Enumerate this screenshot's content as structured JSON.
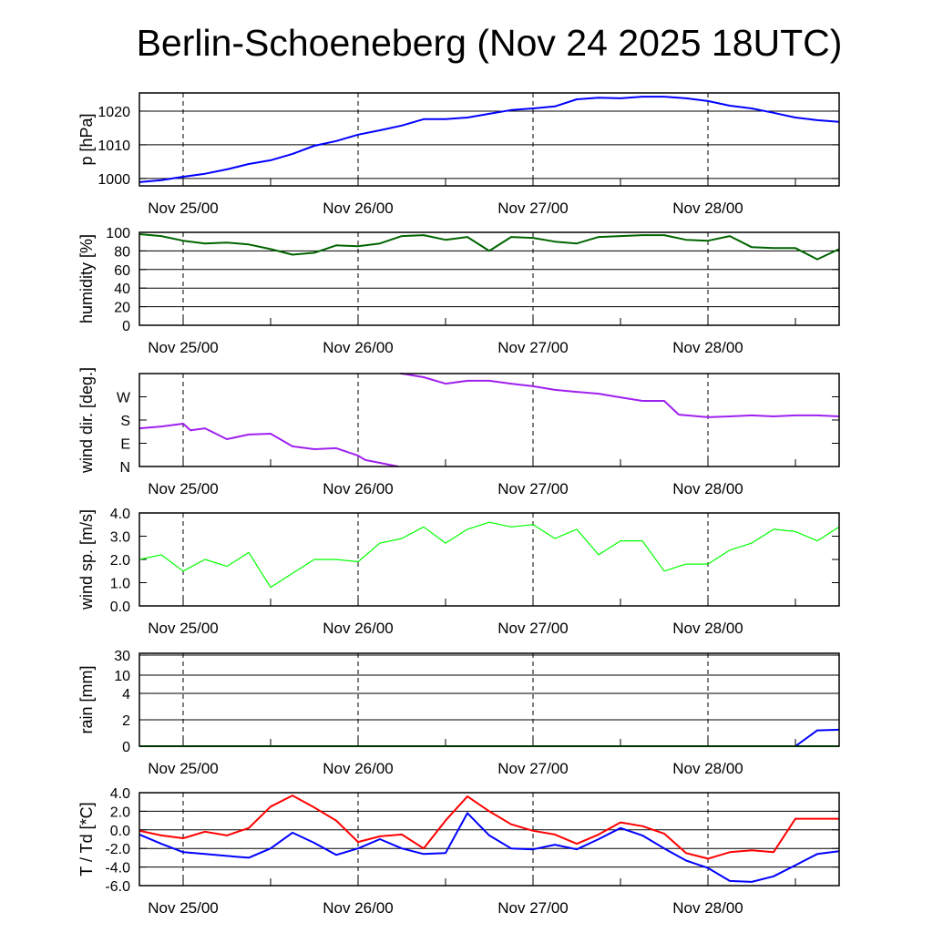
{
  "title": "Berlin-Schoeneberg (Nov 24 2025 18UTC)",
  "chart_data": {
    "type": "line",
    "x_unit": "hours since Nov 24 18UTC",
    "x": [
      0,
      3,
      6,
      9,
      12,
      15,
      18,
      21,
      24,
      27,
      30,
      33,
      36,
      39,
      42,
      45,
      48,
      51,
      54,
      57,
      60,
      63,
      66,
      69,
      72,
      75,
      78,
      81,
      84,
      87,
      90,
      93,
      96
    ],
    "xlim": [
      0,
      96
    ],
    "x_major_ticks": [
      {
        "h": 6,
        "label": "Nov 25/00"
      },
      {
        "h": 30,
        "label": "Nov 26/00"
      },
      {
        "h": 54,
        "label": "Nov 27/00"
      },
      {
        "h": 78,
        "label": "Nov 28/00"
      }
    ],
    "x_minor_ticks": [
      18,
      42,
      66,
      90
    ],
    "panels": [
      {
        "id": "pressure",
        "ylabel": "p [hPa]",
        "ylim": [
          997.8,
          1025.4
        ],
        "grid": true,
        "yticks": [
          {
            "v": 1000,
            "label": "1000"
          },
          {
            "v": 1010,
            "label": "1010"
          },
          {
            "v": 1020,
            "label": "1020"
          }
        ],
        "series": [
          {
            "name": "pressure",
            "color": "#0000ff",
            "values": [
              998.9,
              999.5,
              1000.5,
              1001.4,
              1002.7,
              1004.3,
              1005.4,
              1007.3,
              1009.7,
              1011.1,
              1013.0,
              1014.3,
              1015.7,
              1017.6,
              1017.6,
              1018.1,
              1019.2,
              1020.3,
              1020.8,
              1021.4,
              1023.5,
              1024.0,
              1023.8,
              1024.3,
              1024.3,
              1023.8,
              1023.0,
              1021.6,
              1020.8,
              1019.5,
              1018.1,
              1017.3,
              1016.8
            ]
          }
        ]
      },
      {
        "id": "humidity",
        "ylabel": "humidity [%]",
        "ylim": [
          0,
          100
        ],
        "grid": true,
        "yticks": [
          {
            "v": 0,
            "label": "0"
          },
          {
            "v": 20,
            "label": "20"
          },
          {
            "v": 40,
            "label": "40"
          },
          {
            "v": 60,
            "label": "60"
          },
          {
            "v": 80,
            "label": "80"
          },
          {
            "v": 100,
            "label": "100"
          }
        ],
        "series": [
          {
            "name": "humidity",
            "color": "#006400",
            "values": [
              98,
              96,
              91,
              88,
              89,
              87,
              82,
              76,
              78,
              86,
              85,
              88,
              96,
              97,
              92,
              95,
              80,
              95,
              94,
              90,
              88,
              95,
              96,
              97,
              97,
              92,
              91,
              96,
              84,
              83,
              83,
              71,
              82
            ]
          }
        ]
      },
      {
        "id": "wind_direction",
        "ylabel": "wind dir. [deg.]",
        "ylim": [
          0,
          360
        ],
        "grid": false,
        "yticks": [
          {
            "v": 0,
            "label": "N"
          },
          {
            "v": 90,
            "label": "E"
          },
          {
            "v": 180,
            "label": "S"
          },
          {
            "v": 270,
            "label": "W"
          }
        ],
        "series": [
          {
            "name": "wind direction",
            "color": "#a020f0",
            "points": [
              [
                0,
                148
              ],
              [
                3,
                155
              ],
              [
                6,
                166
              ],
              [
                7,
                140
              ],
              [
                9,
                148
              ],
              [
                12,
                106
              ],
              [
                15,
                124
              ],
              [
                18,
                127
              ],
              [
                21,
                78
              ],
              [
                24,
                67
              ],
              [
                27,
                71
              ],
              [
                30,
                42
              ],
              [
                31,
                25
              ],
              [
                33,
                14
              ],
              [
                35.5,
                0
              ],
              null,
              [
                35.8,
                360
              ],
              [
                36,
                360
              ],
              [
                39,
                346
              ],
              [
                42,
                321
              ],
              [
                45,
                332
              ],
              [
                48,
                332
              ],
              [
                51,
                321
              ],
              [
                54,
                311
              ],
              [
                57,
                297
              ],
              [
                60,
                289
              ],
              [
                63,
                282
              ],
              [
                66,
                268
              ],
              [
                69,
                254
              ],
              [
                72,
                254
              ],
              [
                74,
                201
              ],
              [
                78,
                191
              ],
              [
                81,
                194
              ],
              [
                84,
                198
              ],
              [
                87,
                194
              ],
              [
                90,
                198
              ],
              [
                93,
                198
              ],
              [
                96,
                194
              ]
            ]
          }
        ]
      },
      {
        "id": "wind_speed",
        "ylabel": "wind sp. [m/s]",
        "ylim": [
          0,
          4
        ],
        "grid": false,
        "yticks": [
          {
            "v": 0,
            "label": "0.0"
          },
          {
            "v": 1,
            "label": "1.0"
          },
          {
            "v": 2,
            "label": "2.0"
          },
          {
            "v": 3,
            "label": "3.0"
          },
          {
            "v": 4,
            "label": "4.0"
          }
        ],
        "series": [
          {
            "name": "wind speed",
            "color": "#00ff00",
            "values": [
              2.0,
              2.2,
              1.5,
              2.0,
              1.7,
              2.3,
              0.8,
              1.4,
              2.0,
              2.0,
              1.9,
              2.7,
              2.9,
              3.4,
              2.7,
              3.3,
              3.6,
              3.4,
              3.5,
              2.9,
              3.3,
              2.2,
              2.8,
              2.8,
              1.5,
              1.8,
              1.8,
              2.4,
              2.7,
              3.3,
              3.2,
              2.8,
              3.4
            ]
          }
        ]
      },
      {
        "id": "rain",
        "ylabel": "rain [mm]",
        "ylim": [
          0,
          32
        ],
        "grid": true,
        "scale": "nonlinear",
        "yticks": [
          {
            "v": 0,
            "label": "0"
          },
          {
            "v": 2,
            "label": "2"
          },
          {
            "v": 4,
            "label": "4"
          },
          {
            "v": 10,
            "label": "10"
          },
          {
            "v": 30,
            "label": "30"
          }
        ],
        "series": [
          {
            "name": "accumulated rain",
            "color": "#0000ff",
            "values": [
              0,
              0,
              0,
              0,
              0,
              0,
              0,
              0,
              0,
              0,
              0,
              0,
              0,
              0,
              0,
              0,
              0,
              0,
              0,
              0,
              0,
              0,
              0,
              0,
              0,
              0,
              0,
              0,
              0,
              0,
              0,
              1.2,
              1.25
            ]
          },
          {
            "name": "rain rate",
            "color": "#00c000",
            "values": [
              0,
              0,
              0,
              0,
              0,
              0,
              0,
              0,
              0,
              0,
              0,
              0,
              0,
              0,
              0,
              0,
              0,
              0,
              0,
              0,
              0,
              0,
              0,
              0,
              0,
              0,
              0,
              0,
              0,
              0,
              0,
              0,
              0
            ]
          }
        ]
      },
      {
        "id": "temperature",
        "ylabel": "T / Td [*C]",
        "ylim": [
          -6,
          4
        ],
        "grid": true,
        "yticks": [
          {
            "v": -6,
            "label": "-6.0"
          },
          {
            "v": -4,
            "label": "-4.0"
          },
          {
            "v": -2,
            "label": "-2.0"
          },
          {
            "v": 0,
            "label": "0.0"
          },
          {
            "v": 2,
            "label": "2.0"
          },
          {
            "v": 4,
            "label": "4.0"
          }
        ],
        "series": [
          {
            "name": "temperature",
            "color": "#ff0000",
            "values": [
              -0.1,
              -0.6,
              -0.9,
              -0.2,
              -0.6,
              0.2,
              2.5,
              3.7,
              2.4,
              1.0,
              -1.3,
              -0.7,
              -0.5,
              -2.0,
              1.0,
              3.6,
              2.0,
              0.6,
              -0.1,
              -0.5,
              -1.5,
              -0.5,
              0.8,
              0.4,
              -0.4,
              -2.5,
              -3.1,
              -2.4,
              -2.2,
              -2.4,
              1.2,
              1.2,
              1.2
            ]
          },
          {
            "name": "dew point",
            "color": "#0000ff",
            "values": [
              -0.5,
              -1.5,
              -2.4,
              -2.6,
              -2.8,
              -3.0,
              -2.0,
              -0.3,
              -1.4,
              -2.7,
              -2.0,
              -1.0,
              -2.0,
              -2.6,
              -2.5,
              1.8,
              -0.6,
              -2.0,
              -2.1,
              -1.6,
              -2.1,
              -1.0,
              0.2,
              -0.6,
              -2.0,
              -3.3,
              -4.1,
              -5.5,
              -5.6,
              -5.0,
              -3.8,
              -2.6,
              -2.3
            ]
          }
        ]
      }
    ]
  }
}
